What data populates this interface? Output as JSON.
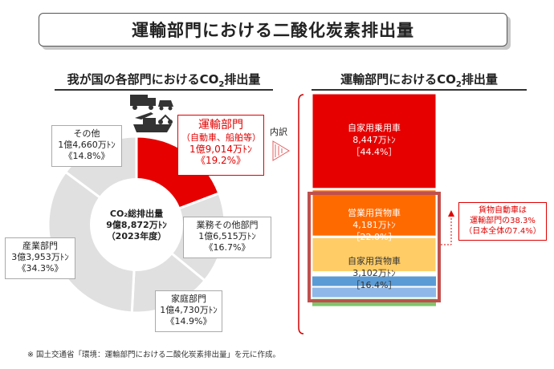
{
  "header": {
    "title": "運輸部門における二酸化炭素排出量"
  },
  "left_section": {
    "title_pre": "我が国の各部門におけるCO",
    "title_sub": "2",
    "title_post": "排出量"
  },
  "right_section": {
    "title_pre": "運輸部門におけるCO",
    "title_sub": "2",
    "title_post": "排出量"
  },
  "arrow_label": "内訳",
  "center": {
    "line1": "CO₂総排出量",
    "line2": "9億8,872万ﾄﾝ",
    "line3": "（2023年度）"
  },
  "note": {
    "line1": "貨物自動車は",
    "line2": "運輸部門の38.3%",
    "line3": "（日本全体の7.4%）"
  },
  "footnote": "※ 国土交通省「環境：運輸部門における二酸化炭素排出量」を元に作成。",
  "colors": {
    "transport": "#e60000",
    "other": "#e0e0e0",
    "pie_border": "#ffffff",
    "passenger_car": "#e60000",
    "commercial_truck": "#ff6a00",
    "private_truck": "#ffcc66",
    "bar_blue1": "#5b9bd5",
    "bar_blue2": "#8fb8e8",
    "bar_green": "#7dc66b",
    "highlight_border": "#c0504d"
  },
  "chart_data": [
    {
      "type": "pie",
      "title": "我が国の各部門におけるCO2排出量",
      "labels": [
        "運輸部門",
        "業務その他部門",
        "家庭部門",
        "産業部門",
        "その他"
      ],
      "sublabels": [
        "（自動車、船舶等）",
        "",
        "",
        "",
        ""
      ],
      "values_text": [
        "1億9,014万ﾄﾝ",
        "1億6,515万ﾄﾝ",
        "1億4,730万ﾄﾝ",
        "3億3,953万ﾄﾝ",
        "1億4,660万ﾄﾝ"
      ],
      "percent_text": [
        "《19.2%》",
        "《16.7%》",
        "《14.9%》",
        "《34.3%》",
        "《14.8%》"
      ],
      "values": [
        19014,
        16515,
        14730,
        33953,
        14660
      ],
      "percents": [
        19.2,
        16.7,
        14.9,
        34.3,
        14.8
      ],
      "total_text": "9億8,872万ﾄﾝ"
    },
    {
      "type": "bar",
      "title": "運輸部門におけるCO2排出量",
      "stacked": true,
      "categories": [
        "自家用乗用車",
        "営業用貨物車",
        "自家用貨物車"
      ],
      "values_text": [
        "8,447万ﾄﾝ",
        "4,181万ﾄﾝ",
        "3,102万ﾄﾝ"
      ],
      "percent_text": [
        "［44.4%］",
        "［22.0%］",
        "［16.4%］"
      ],
      "values": [
        8447,
        4181,
        3102
      ],
      "percents": [
        44.4,
        22.0,
        16.4
      ]
    }
  ]
}
